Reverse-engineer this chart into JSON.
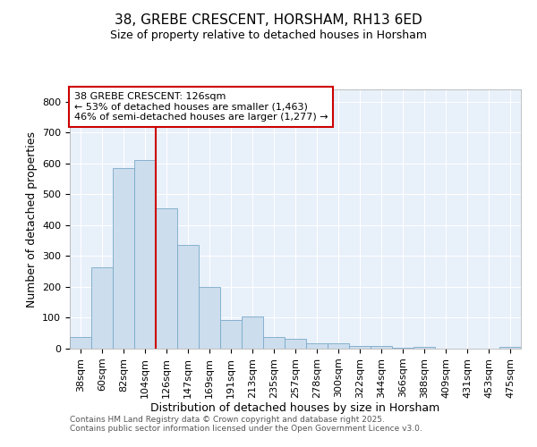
{
  "title_line1": "38, GREBE CRESCENT, HORSHAM, RH13 6ED",
  "title_line2": "Size of property relative to detached houses in Horsham",
  "xlabel": "Distribution of detached houses by size in Horsham",
  "ylabel": "Number of detached properties",
  "categories": [
    "38sqm",
    "60sqm",
    "82sqm",
    "104sqm",
    "126sqm",
    "147sqm",
    "169sqm",
    "191sqm",
    "213sqm",
    "235sqm",
    "257sqm",
    "278sqm",
    "300sqm",
    "322sqm",
    "344sqm",
    "366sqm",
    "388sqm",
    "409sqm",
    "431sqm",
    "453sqm",
    "475sqm"
  ],
  "values": [
    38,
    265,
    585,
    610,
    455,
    335,
    200,
    93,
    103,
    38,
    32,
    17,
    17,
    10,
    10,
    4,
    5,
    0,
    0,
    0,
    6
  ],
  "bar_color": "#ccdded",
  "bar_edgecolor": "#7aaac8",
  "red_line_x": 4.5,
  "red_line_color": "#cc0000",
  "annotation_text": "38 GREBE CRESCENT: 126sqm\n← 53% of detached houses are smaller (1,463)\n46% of semi-detached houses are larger (1,277) →",
  "annotation_box_edgecolor": "#cc0000",
  "annotation_text_color": "#000000",
  "ylim": [
    0,
    840
  ],
  "yticks": [
    0,
    100,
    200,
    300,
    400,
    500,
    600,
    700,
    800
  ],
  "grid_color": "#dde8f5",
  "background_color": "#e8f0fa",
  "footer_line1": "Contains HM Land Registry data © Crown copyright and database right 2025.",
  "footer_line2": "Contains public sector information licensed under the Open Government Licence v3.0.",
  "title_fontsize": 11,
  "subtitle_fontsize": 9,
  "label_fontsize": 9,
  "tick_fontsize": 8,
  "footer_fontsize": 6.5
}
